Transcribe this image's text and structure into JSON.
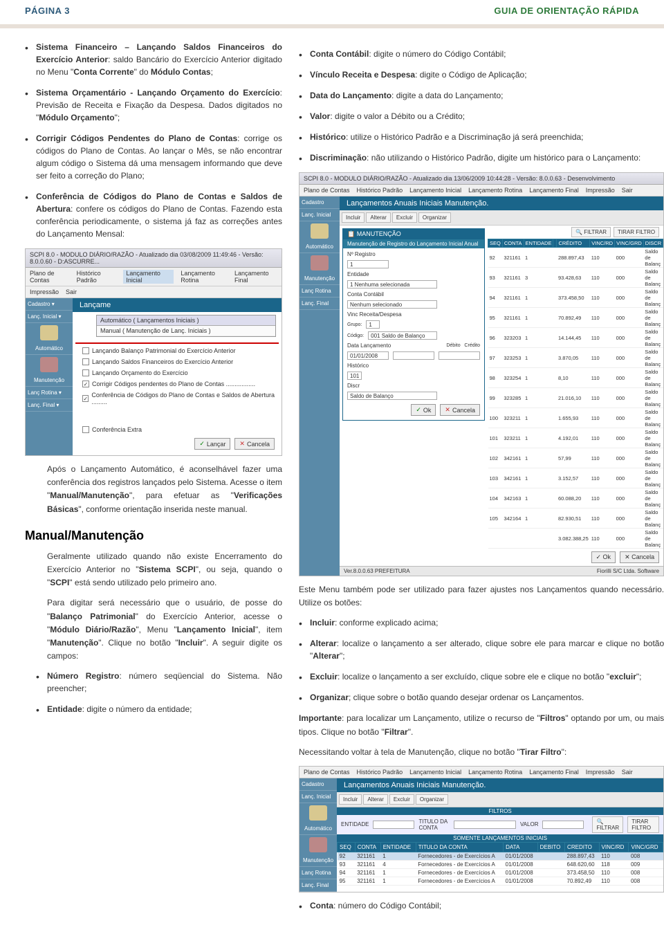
{
  "header": {
    "page_label": "PÁGINA 3",
    "guide_label": "GUIA DE ORIENTAÇÃO RÁPIDA"
  },
  "left_col": {
    "bullet1_pre": "Sistema Financeiro – Lançando Saldos Financeiros do Exercício Anterior",
    "bullet1_post": ": saldo Bancário do Exercício Anterior digitado no Menu \"",
    "bullet1_b2": "Conta Corrente",
    "bullet1_mid2": "\" do ",
    "bullet1_b3": "Módulo Contas",
    "bullet1_end": ";",
    "bullet2_b1": "Sistema Orçamentário - Lançando Orçamento do Exercício",
    "bullet2_mid": ": Previsão de Receita e Fixação da Despesa. Dados digitados no \"",
    "bullet2_b2": "Módulo Orçamento",
    "bullet2_end": "\";",
    "bullet3_b1": "Corrigir Códigos Pendentes do Plano de Contas",
    "bullet3_rest": ": corrige os códigos do Plano de Contas. Ao lançar o Mês, se não encontrar algum código o Sistema dá uma mensagem informando que deve ser feito a correção do Plano;",
    "bullet4_b1": "Conferência de Códigos do Plano de Contas e Saldos de Abertura",
    "bullet4_rest": ": confere os códigos do Plano de Contas. Fazendo esta conferência periodicamente, o sistema já faz as correções antes do Lançamento Mensal:",
    "after_ss1_p1_pre": "Após o Lançamento Automático, é aconselhável fazer uma conferência dos registros lançados pelo Sistema. Acesse o item \"",
    "after_ss1_b1": "Manual/Manutenção",
    "after_ss1_mid": "\", para efetuar as \"",
    "after_ss1_b2": "Verificações Básicas",
    "after_ss1_end": "\", conforme orientação inserida neste manual.",
    "heading": "Manual/Manutenção",
    "p2_pre": "Geralmente utilizado quando não existe Encerramento do Exercício Anterior no \"",
    "p2_b1": "Sistema SCPI",
    "p2_mid": "\", ou seja, quando o \"",
    "p2_b2": "SCPI",
    "p2_end": "\" está sendo utilizado pelo primeiro ano.",
    "p3_pre": "Para digitar será necessário que o usuário, de posse do \"",
    "p3_b1": "Balanço Patrimonial",
    "p3_mid1": "\" do Exercício Anterior, acesse o \"",
    "p3_b2": "Módulo Diário/Razão",
    "p3_mid2": "\", Menu \"",
    "p3_b3": "Lançamento Inicial",
    "p3_mid3": "\", item \"",
    "p3_b4": "Manutenção",
    "p3_mid4": "\". Clique no botão \"",
    "p3_b5": "Incluir",
    "p3_end": "\". A seguir digite os campos:",
    "sb1_b": "Número Registro",
    "sb1_rest": ": número seqüencial do Sistema. Não preencher;",
    "sb2_b": "Entidade",
    "sb2_rest": ": digite o número da entidade;"
  },
  "right_col": {
    "rb1_b": "Conta Contábil",
    "rb1_rest": ": digite o número do Código Contábil;",
    "rb2_b": "Vínculo Receita e Despesa",
    "rb2_rest": ": digite o Código de Aplicação;",
    "rb3_b": "Data do Lançamento",
    "rb3_rest": ": digite a data do Lançamento;",
    "rb4_b": "Valor",
    "rb4_rest": ": digite o valor a Débito ou a Crédito;",
    "rb5_b": "Histórico",
    "rb5_rest": ": utilize o Histórico Padrão e a Discriminação já será preenchida;",
    "rb6_b": "Discriminação",
    "rb6_rest": ": não utilizando o Histórico Padrão, digite um histórico para o Lançamento:",
    "after_ss2_p1": "Este Menu também pode ser utilizado para fazer ajustes nos Lançamentos quando necessário. Utilize os botões:",
    "rbb1_b": "Incluir",
    "rbb1_rest": ": conforme explicado acima;",
    "rbb2_b": "Alterar",
    "rbb2_pre": ": localize o lançamento a ser alterado, clique sobre ele para marcar e clique no botão \"",
    "rbb2_b2": "Alterar",
    "rbb2_end": "\";",
    "rbb3_b": "Excluir",
    "rbb3_pre": ": localize o lançamento a ser excluído, clique sobre ele e clique no botão \"",
    "rbb3_b2": "excluir",
    "rbb3_end": "\";",
    "rbb4_b": "Organizar",
    "rbb4_rest": "; clique sobre o botão quando desejar ordenar os Lançamentos.",
    "imp_b": "Importante",
    "imp_pre": ": para localizar um Lançamento, utilize o recurso de \"",
    "imp_b2": "Filtros",
    "imp_mid": "\" optando por um, ou mais tipos. Clique no botão \"",
    "imp_b3": "Filtrar",
    "imp_end": "\".",
    "tf_pre": "Necessitando voltar à tela de Manutenção, clique no botão \"",
    "tf_b": "Tirar Filtro",
    "tf_end": "\":",
    "last_b": "Conta",
    "last_rest": ": número do Código Contábil;"
  },
  "ss1": {
    "title": "SCPI 8.0 - MODULO DIÁRIO/RAZÃO - Atualizado dia 03/08/2009 11:49:46 - Versão: 8.0.0.60 - D:ASCURRE...",
    "menus": [
      "Plano de Contas",
      "Histórico Padrão",
      "Lançamento Inicial",
      "Lançamento Rotina",
      "Lançamento Final"
    ],
    "submenus": [
      "Impressão",
      "Sair"
    ],
    "banner": "Lançame",
    "dropdowns": [
      "Automático ( Lançamentos Iniciais )",
      "Manual  ( Manutenção de Lanç. Iniciais )"
    ],
    "checks": [
      {
        "checked": false,
        "label": "Lançando Balanço Patrimonial do Exercício Anterior"
      },
      {
        "checked": false,
        "label": "Lançando Saldos Financeiros do Exercício Anterior"
      },
      {
        "checked": false,
        "label": "Lançando Orçamento do Exercício"
      },
      {
        "checked": true,
        "label": "Corrigir Códigos pendentes do Plano de Contas ................."
      },
      {
        "checked": true,
        "label": "Conferência de Códigos do Plano de Contas e Saldos de Abertura ........."
      }
    ],
    "extra": "Conferência Extra",
    "sidebar": [
      "Cadastro",
      "Lanç. Inicial",
      "Automático",
      "Manutenção",
      "Lanç Rotina",
      "Lanç. Final"
    ],
    "btn_lancar": "Lançar",
    "btn_cancela": "Cancela"
  },
  "ss2": {
    "title": "SCPI 8.0 - MODULO DIÁRIO/RAZÃO - Atualizado dia 13/06/2009 10:44:28 - Versão: 8.0.0.63 - Desenvolvimento",
    "menus": [
      "Plano de Contas",
      "Histórico Padrão",
      "Lançamento Inicial",
      "Lançamento Rotina",
      "Lançamento Final",
      "Impressão",
      "Sair"
    ],
    "banner": "Lançamentos Anuais Iniciais Manutenção.",
    "toolbar": [
      "Incluir",
      "Alterar",
      "Excluir",
      "Organizar"
    ],
    "panel_title": "MANUTENÇÃO",
    "panel_sub": "Manutenção de Registro do Lançamento Inicial Anual",
    "filter_btn": "FILTRAR",
    "tirar_btn": "TIRAR FILTRO",
    "form_labels": [
      "Nº Registro",
      "Entidade",
      "Conta Contábil",
      "Vinc Receita/Despesa",
      "Grupo",
      "Código",
      "Data Lançamento",
      "Histórico",
      "Discr"
    ],
    "form_vals": [
      "1",
      "1   Nenhuma selecionada",
      "   Nenhum selecionado",
      "1",
      "001       Saldo de Balanço",
      "01/01/2008",
      "101",
      "Saldo de Balanço"
    ],
    "btn_ok": "Ok",
    "btn_cancela": "Cancela",
    "th": [
      "SEQ",
      "CONTA",
      "ENTIDADE",
      "",
      "CRÉDITO",
      "VINC/RD",
      "VINC/GRD",
      "DISCR"
    ],
    "rows": [
      [
        "92",
        "321161",
        "1",
        "",
        "288.897,43",
        "110",
        "000",
        "Saldo de Balanç"
      ],
      [
        "93",
        "321161",
        "3",
        "",
        "93.428,63",
        "110",
        "000",
        "Saldo de Balanç"
      ],
      [
        "94",
        "321161",
        "1",
        "",
        "373.458,50",
        "110",
        "000",
        "Saldo de Balanç"
      ],
      [
        "95",
        "321161",
        "1",
        "",
        "70.892,49",
        "110",
        "000",
        "Saldo de Balanç"
      ],
      [
        "96",
        "323203",
        "1",
        "",
        "14.144,45",
        "110",
        "000",
        "Saldo de Balanç"
      ],
      [
        "97",
        "323253",
        "1",
        "",
        "3.870,05",
        "110",
        "000",
        "Saldo de Balanç"
      ],
      [
        "98",
        "323254",
        "1",
        "",
        "8,10",
        "110",
        "000",
        "Saldo de Balanç"
      ],
      [
        "99",
        "323285",
        "1",
        "",
        "21.016,10",
        "110",
        "000",
        "Saldo de Balanç"
      ],
      [
        "100",
        "323211",
        "1",
        "",
        "1.655,93",
        "110",
        "000",
        "Saldo de Balanç"
      ],
      [
        "101",
        "323211",
        "1",
        "",
        "4.192,01",
        "110",
        "000",
        "Saldo de Balanç"
      ],
      [
        "102",
        "342161",
        "1",
        "",
        "57,99",
        "110",
        "000",
        "Saldo de Balanç"
      ],
      [
        "103",
        "342161",
        "1",
        "",
        "3.152,57",
        "110",
        "000",
        "Saldo de Balanç"
      ],
      [
        "104",
        "342163",
        "1",
        "",
        "60.088,20",
        "110",
        "000",
        "Saldo de Balanç"
      ],
      [
        "105",
        "342164",
        "1",
        "",
        "82.930,51",
        "110",
        "000",
        "Saldo de Balanç"
      ],
      [
        "",
        "",
        "",
        "",
        "3.082.388,25",
        "110",
        "000",
        "Saldo de Balanç"
      ]
    ],
    "status_left": "Ver.8.0.0.63    PREFEITURA",
    "status_right": "Fiorilli S/C Ltda. Software",
    "sidebar": [
      "Cadastro",
      "Lanç. Inicial",
      "Automático",
      "Manutenção",
      "Lanç Rotina",
      "Lanç. Final"
    ]
  },
  "ss3": {
    "menus": [
      "Plano de Contas",
      "Histórico Padrão",
      "Lançamento Inicial",
      "Lançamento Rotina",
      "Lançamento Final",
      "Impressão",
      "Sair"
    ],
    "banner": "Lançamentos Anuais Iniciais Manutenção.",
    "toolbar": [
      "Incluir",
      "Alterar",
      "Excluir",
      "Organizar"
    ],
    "filter_head": "FILTROS",
    "filter_labels": [
      "ENTIDADE",
      "TITULO DA CONTA",
      "VALOR"
    ],
    "filter_btn": "FILTRAR",
    "tirar_btn": "TIRAR FILTRO",
    "somente": "SOMENTE LANÇAMENTOS INICIAIS",
    "th": [
      "SEQ",
      "CONTA",
      "ENTIDADE",
      "TITULO DA CONTA",
      "DATA",
      "DEBITO",
      "CREDITO",
      "VINC/RD",
      "VINC/GRD"
    ],
    "rows": [
      [
        "92",
        "321161",
        "1",
        "Fornecedores - de Exercícios A",
        "01/01/2008",
        "",
        "288.897,43",
        "110",
        "008"
      ],
      [
        "93",
        "321161",
        "4",
        "Fornecedores - de Exercícios A",
        "01/01/2008",
        "",
        "648.620,60",
        "118",
        "009"
      ],
      [
        "94",
        "321161",
        "1",
        "Fornecedores - de Exercícios A",
        "01/01/2008",
        "",
        "373.458,50",
        "110",
        "008"
      ],
      [
        "95",
        "321161",
        "1",
        "Fornecedores - de Exercícios A",
        "01/01/2008",
        "",
        "70.892,49",
        "110",
        "008"
      ]
    ],
    "sidebar": [
      "Cadastro",
      "Lanç. Inicial",
      "Automático",
      "Manutenção",
      "Lanç Rotina",
      "Lanç. Final"
    ]
  }
}
